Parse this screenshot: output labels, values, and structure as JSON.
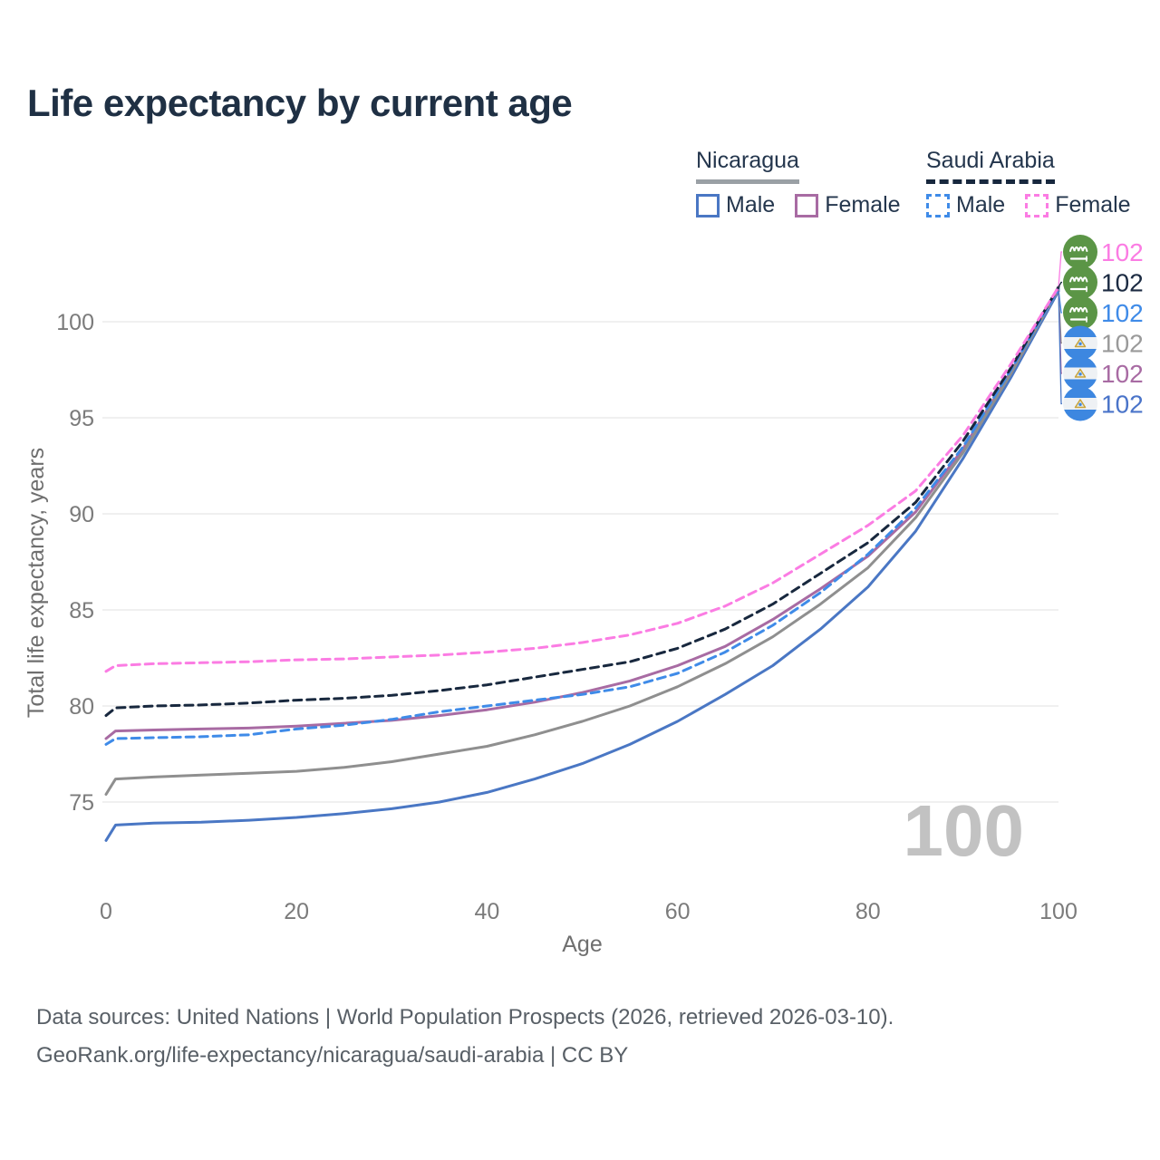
{
  "title": "Life expectancy by current age",
  "legend": {
    "groups": [
      {
        "name": "Nicaragua",
        "line_style": "solid",
        "underline_color": "#9aa0a5",
        "items": [
          {
            "label": "Male",
            "color": "#4a77c4"
          },
          {
            "label": "Female",
            "color": "#a86ba3"
          }
        ]
      },
      {
        "name": "Saudi Arabia",
        "line_style": "dashed",
        "underline_color": "#18283e",
        "items": [
          {
            "label": "Male",
            "color": "#3f8be8"
          },
          {
            "label": "Female",
            "color": "#fb7ce3"
          }
        ]
      }
    ]
  },
  "watermark": {
    "text": "100",
    "color": "#c2c2c2"
  },
  "sources": [
    "Data sources: United Nations | World Population Prospects (2026, retrieved 2026-03-10).",
    "GeoRank.org/life-expectancy/nicaragua/saudi-arabia | CC BY"
  ],
  "chart_data": {
    "type": "line",
    "title": "Life expectancy by current age",
    "xlabel": "Age",
    "ylabel": "Total life expectancy, years",
    "x_ticks": [
      0,
      20,
      40,
      60,
      80,
      100
    ],
    "y_ticks": [
      75,
      80,
      85,
      90,
      95,
      100
    ],
    "xlim": [
      0,
      100
    ],
    "ylim": [
      72.5,
      103.5
    ],
    "grid": "horizontal",
    "legend_position": "top-right",
    "x": [
      0,
      1,
      5,
      10,
      15,
      20,
      25,
      30,
      35,
      40,
      45,
      50,
      55,
      60,
      65,
      70,
      75,
      80,
      85,
      90,
      95,
      100
    ],
    "series": [
      {
        "name": "Saudi Arabia Female",
        "country": "Saudi Arabia",
        "sex": "female",
        "color": "#fb7ce3",
        "label_color": "#fb7ce3",
        "dash": true,
        "flag": "saudi-arabia",
        "end_label": "102",
        "row": 0,
        "values": [
          81.8,
          82.1,
          82.2,
          82.25,
          82.3,
          82.4,
          82.45,
          82.55,
          82.65,
          82.8,
          83.0,
          83.3,
          83.7,
          84.3,
          85.2,
          86.4,
          87.9,
          89.4,
          91.2,
          94.1,
          97.8,
          101.8
        ]
      },
      {
        "name": "Saudi Arabia (all)",
        "country": "Saudi Arabia",
        "sex": "all",
        "color": "#18283e",
        "label_color": "#1c2b42",
        "dash": true,
        "flag": "saudi-arabia",
        "end_label": "102",
        "row": 1,
        "values": [
          79.5,
          79.9,
          80.0,
          80.05,
          80.15,
          80.3,
          80.4,
          80.55,
          80.8,
          81.1,
          81.5,
          81.9,
          82.3,
          83.0,
          84.0,
          85.3,
          86.9,
          88.5,
          90.6,
          93.8,
          97.6,
          101.8
        ]
      },
      {
        "name": "Saudi Arabia Male",
        "country": "Saudi Arabia",
        "sex": "male",
        "color": "#3f8be8",
        "label_color": "#3f8be8",
        "dash": true,
        "flag": "saudi-arabia",
        "end_label": "102",
        "row": 2,
        "values": [
          78.0,
          78.3,
          78.35,
          78.4,
          78.5,
          78.8,
          79.0,
          79.3,
          79.7,
          80.0,
          80.3,
          80.6,
          81.0,
          81.7,
          82.8,
          84.2,
          85.9,
          87.9,
          90.3,
          93.5,
          97.5,
          101.7
        ]
      },
      {
        "name": "Nicaragua (all)",
        "country": "Nicaragua",
        "sex": "all",
        "color": "#8f8f8f",
        "label_color": "#9a9a9a",
        "dash": false,
        "flag": "nicaragua",
        "end_label": "102",
        "row": 3,
        "values": [
          75.4,
          76.2,
          76.3,
          76.4,
          76.5,
          76.6,
          76.8,
          77.1,
          77.5,
          77.9,
          78.5,
          79.2,
          80.0,
          81.0,
          82.2,
          83.6,
          85.3,
          87.2,
          89.8,
          93.2,
          97.3,
          101.7
        ]
      },
      {
        "name": "Nicaragua Female",
        "country": "Nicaragua",
        "sex": "female",
        "color": "#a86ba3",
        "label_color": "#a86ba3",
        "dash": false,
        "flag": "nicaragua",
        "end_label": "102",
        "row": 4,
        "values": [
          78.3,
          78.7,
          78.75,
          78.8,
          78.85,
          78.95,
          79.1,
          79.25,
          79.5,
          79.8,
          80.2,
          80.7,
          81.3,
          82.1,
          83.1,
          84.5,
          86.1,
          87.8,
          90.1,
          93.4,
          97.4,
          101.7
        ]
      },
      {
        "name": "Nicaragua Male",
        "country": "Nicaragua",
        "sex": "male",
        "color": "#4a77c4",
        "label_color": "#4a74c9",
        "dash": false,
        "flag": "nicaragua",
        "end_label": "102",
        "row": 5,
        "values": [
          73.0,
          73.8,
          73.9,
          73.95,
          74.05,
          74.2,
          74.4,
          74.65,
          75.0,
          75.5,
          76.2,
          77.0,
          78.0,
          79.2,
          80.6,
          82.1,
          84.0,
          86.2,
          89.1,
          92.9,
          97.1,
          101.6
        ]
      }
    ]
  },
  "style": {
    "grid_color": "#ececec",
    "tick_color": "#7b7b7b",
    "axis_title_color": "#6f6f6f",
    "saudi_flag_green": "#5b9546",
    "nicaragua_flag_blue": "#3d87e0"
  }
}
